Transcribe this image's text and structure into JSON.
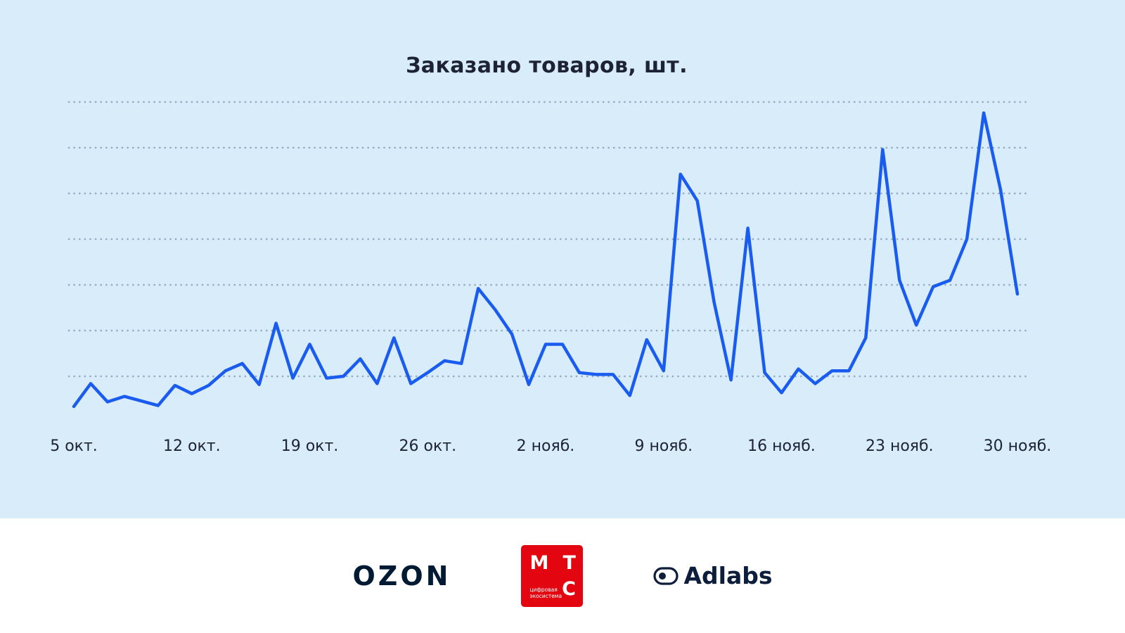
{
  "chart_data": {
    "type": "line",
    "title": "Заказано товаров, шт.",
    "x_tick_labels": [
      "5 окт.",
      "12 окт.",
      "19 окт.",
      "26 окт.",
      "2 нояб.",
      "9 нояб.",
      "16 нояб.",
      "23 нояб.",
      "30 нояб."
    ],
    "x_tick_day_index": [
      0,
      7,
      14,
      21,
      28,
      35,
      42,
      49,
      56
    ],
    "values": [
      17,
      42,
      22,
      28,
      23,
      18,
      40,
      31,
      40,
      56,
      64,
      41,
      108,
      48,
      85,
      48,
      50,
      69,
      42,
      92,
      42,
      54,
      67,
      64,
      146,
      123,
      96,
      41,
      85,
      85,
      54,
      52,
      52,
      29,
      90,
      56,
      271,
      242,
      131,
      46,
      212,
      54,
      32,
      58,
      42,
      56,
      56,
      92,
      298,
      155,
      106,
      148,
      155,
      200,
      338,
      254,
      140
    ],
    "ylim": [
      0,
      350
    ],
    "gridline_step": 50,
    "grid": "dotted horizontal gridlines, no y-axis labels, no legend",
    "line_color": "#1a5cf0",
    "background_color": "#d8ecf9",
    "text_color": "#1e2235"
  },
  "footer": {
    "background_color": "#ffffff",
    "ozon": {
      "text": "OZON",
      "color": "#001a34"
    },
    "mts": {
      "m": "М",
      "t": "Т",
      "c": "С",
      "tagline": "цифровая\nэкосистема",
      "color": "#e30611"
    },
    "adlabs": {
      "text": "Adlabs",
      "icon": "adlabs-eye-icon",
      "color": "#0c1e3c"
    }
  }
}
